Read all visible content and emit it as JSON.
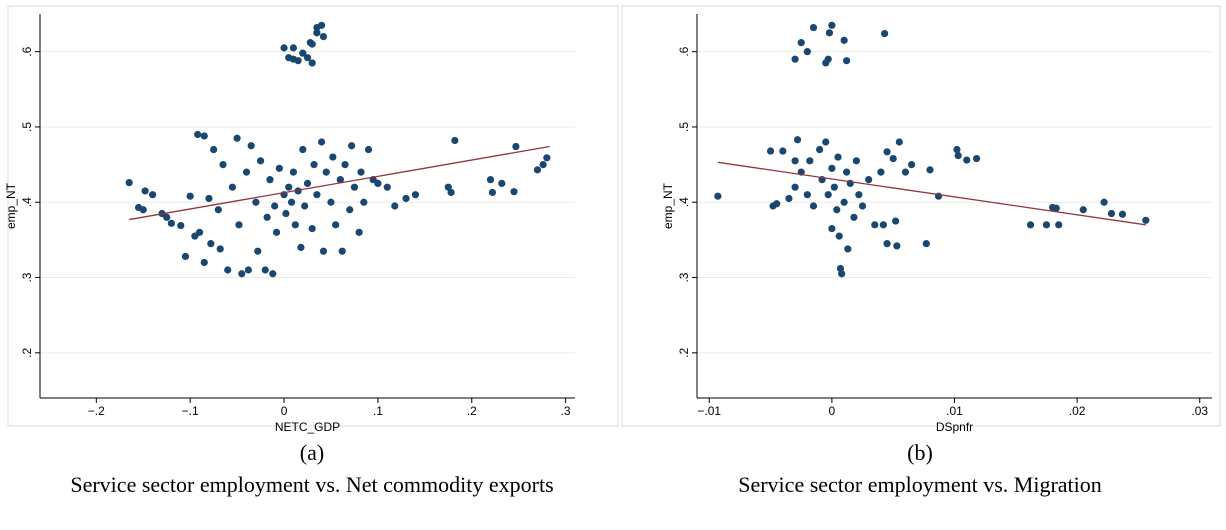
{
  "chart_data": [
    {
      "type": "scatter",
      "label": "(a)",
      "caption": "Service sector employment vs. Net commodity exports",
      "xlabel": "NETC_GDP",
      "ylabel": "emp_NT",
      "xlim": [
        -0.26,
        0.31
      ],
      "ylim": [
        0.14,
        0.65
      ],
      "xticks": [
        {
          "value": -0.2,
          "label": "−.2"
        },
        {
          "value": -0.1,
          "label": "−.1"
        },
        0,
        {
          "value": 0.1,
          "label": ".1"
        },
        {
          "value": 0.2,
          "label": ".2"
        },
        {
          "value": 0.3,
          "label": ".3"
        }
      ],
      "yticks": [
        {
          "value": 0.2,
          "label": ".2"
        },
        {
          "value": 0.3,
          "label": ".3"
        },
        {
          "value": 0.4,
          "label": ".4"
        },
        {
          "value": 0.5,
          "label": ".5"
        },
        {
          "value": 0.6,
          "label": ".6"
        }
      ],
      "grid": true,
      "series": [
        {
          "type": "scatter",
          "color": "#1a476f",
          "x": [
            0,
            0.01,
            0.005,
            0.01,
            0.015,
            0.02,
            0.025,
            0.03,
            0.028,
            0.035,
            0.035,
            0.04,
            0.042,
            0.03,
            -0.165,
            -0.155,
            -0.15,
            -0.148,
            -0.14,
            -0.13,
            -0.125,
            -0.12,
            -0.11,
            -0.105,
            -0.1,
            -0.095,
            -0.092,
            -0.09,
            -0.085,
            -0.085,
            -0.08,
            -0.078,
            -0.075,
            -0.07,
            -0.068,
            -0.065,
            -0.06,
            -0.055,
            -0.05,
            -0.048,
            -0.045,
            -0.04,
            -0.038,
            -0.035,
            -0.03,
            -0.028,
            -0.025,
            -0.02,
            -0.018,
            -0.015,
            -0.012,
            -0.01,
            -0.008,
            -0.005,
            0,
            0.002,
            0.005,
            0.008,
            0.01,
            0.012,
            0.015,
            0.018,
            0.02,
            0.022,
            0.025,
            0.03,
            0.032,
            0.035,
            0.04,
            0.042,
            0.045,
            0.05,
            0.052,
            0.055,
            0.06,
            0.062,
            0.065,
            0.07,
            0.072,
            0.075,
            0.08,
            0.082,
            0.085,
            0.09,
            0.095,
            0.1,
            0.11,
            0.118,
            0.13,
            0.14,
            0.175,
            0.178,
            0.182,
            0.22,
            0.222,
            0.232,
            0.245,
            0.247,
            0.27,
            0.276,
            0.28
          ],
          "values": [
            0.605,
            0.605,
            0.592,
            0.59,
            0.588,
            0.598,
            0.592,
            0.585,
            0.612,
            0.625,
            0.632,
            0.635,
            0.62,
            0.61,
            0.426,
            0.393,
            0.39,
            0.415,
            0.41,
            0.385,
            0.38,
            0.372,
            0.369,
            0.328,
            0.408,
            0.355,
            0.49,
            0.36,
            0.488,
            0.32,
            0.405,
            0.345,
            0.47,
            0.39,
            0.338,
            0.45,
            0.31,
            0.42,
            0.485,
            0.37,
            0.305,
            0.44,
            0.31,
            0.475,
            0.4,
            0.335,
            0.455,
            0.31,
            0.38,
            0.43,
            0.305,
            0.395,
            0.36,
            0.445,
            0.41,
            0.385,
            0.42,
            0.4,
            0.44,
            0.37,
            0.415,
            0.34,
            0.47,
            0.395,
            0.425,
            0.365,
            0.45,
            0.41,
            0.48,
            0.335,
            0.44,
            0.4,
            0.46,
            0.37,
            0.43,
            0.335,
            0.45,
            0.39,
            0.475,
            0.42,
            0.36,
            0.44,
            0.4,
            0.47,
            0.43,
            0.425,
            0.42,
            0.395,
            0.405,
            0.41,
            0.42,
            0.413,
            0.482,
            0.43,
            0.413,
            0.425,
            0.414,
            0.474,
            0.443,
            0.45,
            0.459
          ]
        },
        {
          "type": "line",
          "color": "#90353b",
          "x": [
            -0.165,
            0.283
          ],
          "values": [
            0.377,
            0.474
          ]
        }
      ]
    },
    {
      "type": "scatter",
      "label": "(b)",
      "caption": "Service sector employment vs. Migration",
      "xlabel": "DSpnfr",
      "ylabel": "emp_NT",
      "xlim": [
        -0.011,
        0.031
      ],
      "ylim": [
        0.14,
        0.65
      ],
      "xticks": [
        {
          "value": -0.01,
          "label": "−.01"
        },
        0,
        {
          "value": 0.01,
          "label": ".01"
        },
        {
          "value": 0.02,
          "label": ".02"
        },
        {
          "value": 0.03,
          "label": ".03"
        }
      ],
      "yticks": [
        {
          "value": 0.2,
          "label": ".2"
        },
        {
          "value": 0.3,
          "label": ".3"
        },
        {
          "value": 0.4,
          "label": ".4"
        },
        {
          "value": 0.5,
          "label": ".5"
        },
        {
          "value": 0.6,
          "label": ".6"
        }
      ],
      "grid": true,
      "series": [
        {
          "type": "scatter",
          "color": "#1a476f",
          "x": [
            -0.003,
            -0.0025,
            -0.002,
            -0.0015,
            -0.0005,
            -0.0003,
            -0.0002,
            0,
            0.001,
            0.0012,
            0.0043,
            -0.0093,
            -0.005,
            -0.0048,
            -0.0045,
            -0.004,
            -0.0035,
            -0.003,
            -0.003,
            -0.0028,
            -0.0025,
            -0.002,
            -0.0018,
            -0.0015,
            -0.001,
            -0.0008,
            -0.0005,
            -0.0003,
            0,
            0,
            0.0002,
            0.0004,
            0.0005,
            0.0006,
            0.0007,
            0.0008,
            0.001,
            0.0012,
            0.0013,
            0.0015,
            0.0018,
            0.002,
            0.0022,
            0.0025,
            0.003,
            0.0035,
            0.004,
            0.0042,
            0.0045,
            0.0045,
            0.005,
            0.0052,
            0.0053,
            0.0055,
            0.006,
            0.0065,
            0.0077,
            0.008,
            0.0087,
            0.0102,
            0.0103,
            0.011,
            0.0118,
            0.0162,
            0.0175,
            0.018,
            0.0183,
            0.0185,
            0.0205,
            0.0222,
            0.0228,
            0.0237,
            0.0256
          ],
          "values": [
            0.59,
            0.612,
            0.6,
            0.632,
            0.585,
            0.59,
            0.625,
            0.635,
            0.615,
            0.588,
            0.624,
            0.408,
            0.468,
            0.395,
            0.398,
            0.468,
            0.405,
            0.455,
            0.42,
            0.483,
            0.44,
            0.41,
            0.455,
            0.395,
            0.47,
            0.43,
            0.48,
            0.41,
            0.445,
            0.365,
            0.42,
            0.39,
            0.46,
            0.355,
            0.312,
            0.305,
            0.4,
            0.44,
            0.338,
            0.425,
            0.38,
            0.455,
            0.41,
            0.395,
            0.43,
            0.37,
            0.44,
            0.37,
            0.467,
            0.345,
            0.458,
            0.375,
            0.342,
            0.48,
            0.44,
            0.45,
            0.345,
            0.443,
            0.408,
            0.47,
            0.462,
            0.456,
            0.458,
            0.37,
            0.37,
            0.393,
            0.392,
            0.37,
            0.39,
            0.4,
            0.385,
            0.384,
            0.376
          ]
        },
        {
          "type": "line",
          "color": "#90353b",
          "x": [
            -0.0093,
            0.0256
          ],
          "values": [
            0.453,
            0.37
          ]
        }
      ]
    }
  ]
}
